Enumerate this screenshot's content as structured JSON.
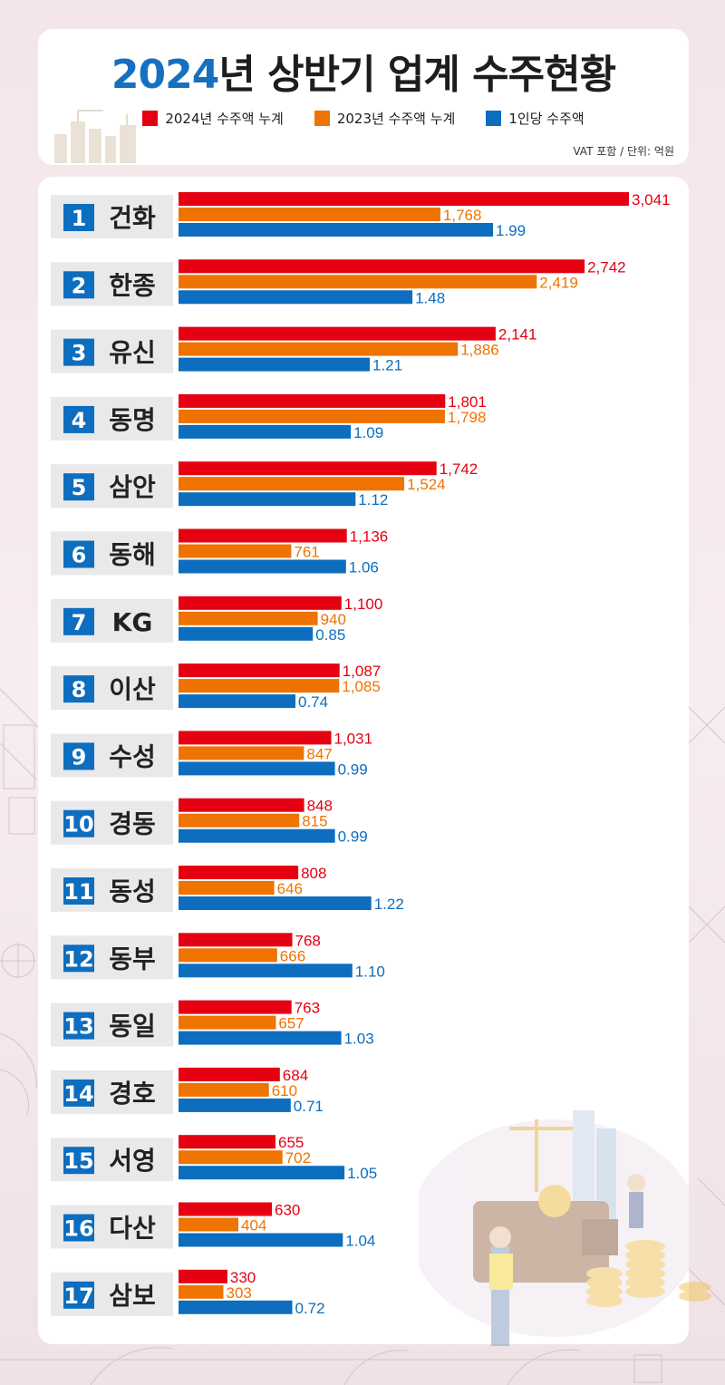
{
  "header": {
    "title_year": "2024",
    "title_rest": "년 상반기 업계 수주현황",
    "unit_note": "VAT 포함 / 단위: 억원"
  },
  "colors": {
    "s2024": "#e50012",
    "s2023": "#ef7300",
    "per_capita": "#0d6dbe"
  },
  "chart_data": {
    "type": "bar",
    "orientation": "horizontal",
    "title": "2024년 상반기 업계 수주현황",
    "unit": "VAT 포함 / 단위: 억원",
    "legend": [
      "2024년 수주액 누계",
      "2023년 수주액 누계",
      "1인당 수주액"
    ],
    "ranks": [
      "1",
      "2",
      "3",
      "4",
      "5",
      "6",
      "7",
      "8",
      "9",
      "10",
      "11",
      "12",
      "13",
      "14",
      "15",
      "16",
      "17"
    ],
    "categories": [
      "건화",
      "한종",
      "유신",
      "동명",
      "삼안",
      "동해",
      "KG",
      "이산",
      "수성",
      "경동",
      "동성",
      "동부",
      "동일",
      "경호",
      "서영",
      "다산",
      "삼보"
    ],
    "series": [
      {
        "name": "2024년 수주액 누계",
        "values": [
          3041,
          2742,
          2141,
          1801,
          1742,
          1136,
          1100,
          1087,
          1031,
          848,
          808,
          768,
          763,
          684,
          655,
          630,
          330
        ],
        "labels": [
          "3,041",
          "2,742",
          "2,141",
          "1,801",
          "1,742",
          "1,136",
          "1,100",
          "1,087",
          "1,031",
          "848",
          "808",
          "768",
          "763",
          "684",
          "655",
          "630",
          "330"
        ]
      },
      {
        "name": "2023년 수주액 누계",
        "values": [
          1768,
          2419,
          1886,
          1798,
          1524,
          761,
          940,
          1085,
          847,
          815,
          646,
          666,
          657,
          610,
          702,
          404,
          303
        ],
        "labels": [
          "1,768",
          "2,419",
          "1,886",
          "1,798",
          "1,524",
          "761",
          "940",
          "1,085",
          "847",
          "815",
          "646",
          "666",
          "657",
          "610",
          "702",
          "404",
          "303"
        ]
      },
      {
        "name": "1인당 수주액",
        "values": [
          1.99,
          1.48,
          1.21,
          1.09,
          1.12,
          1.06,
          0.85,
          0.74,
          0.99,
          0.99,
          1.22,
          1.1,
          1.03,
          0.71,
          1.05,
          1.04,
          0.72
        ],
        "labels": [
          "1.99",
          "1.48",
          "1.21",
          "1.09",
          "1.12",
          "1.06",
          "0.85",
          "0.74",
          "0.99",
          "0.99",
          "1.22",
          "1.10",
          "1.03",
          "0.71",
          "1.05",
          "1.04",
          "0.72"
        ]
      }
    ]
  }
}
